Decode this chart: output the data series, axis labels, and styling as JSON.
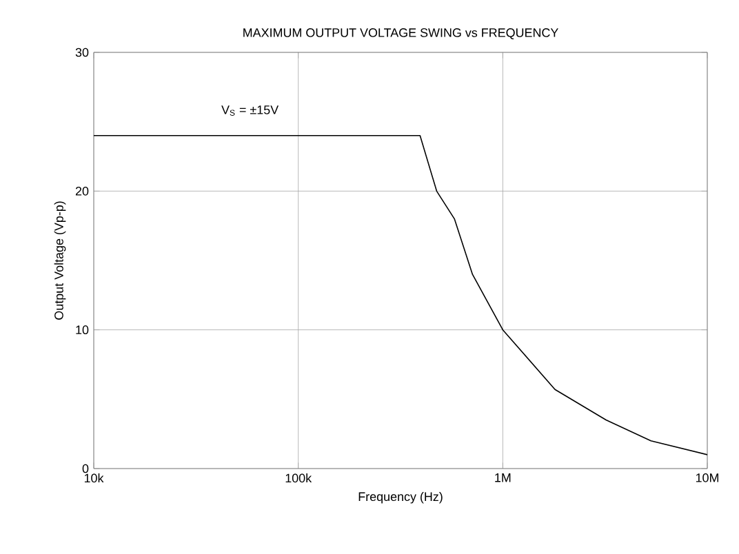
{
  "chart_data": {
    "type": "line",
    "title": "MAXIMUM OUTPUT VOLTAGE SWING vs FREQUENCY",
    "xlabel": "Frequency (Hz)",
    "ylabel": "Output Voltage (Vp-p)",
    "x": [
      10000,
      394000,
      475000,
      580000,
      711000,
      1000000,
      1800000,
      3200000,
      5300000,
      10000000
    ],
    "values": [
      24,
      24,
      20,
      18,
      14,
      10,
      5.7,
      3.5,
      2,
      1
    ],
    "color": "#000000",
    "log": "x",
    "grid": true,
    "xlim": [
      10000,
      10000000
    ],
    "xticks": [
      {
        "value": 10000,
        "label": "10k"
      },
      {
        "value": 100000,
        "label": "100k"
      },
      {
        "value": 1000000,
        "label": "1M"
      },
      {
        "value": 10000000,
        "label": "10M"
      }
    ],
    "ylim": [
      0,
      30
    ],
    "yticks": [
      0,
      10,
      20,
      30
    ],
    "annotations": [
      "V$_{S}$ = ±15V"
    ]
  }
}
